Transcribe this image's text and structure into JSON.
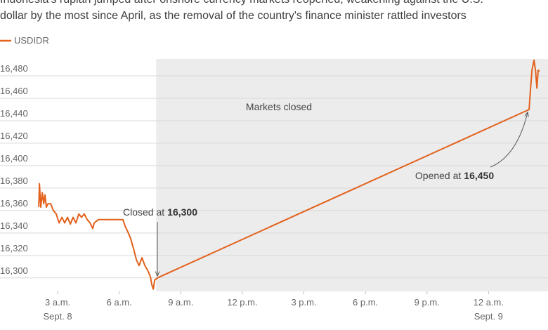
{
  "chart_data": {
    "type": "line",
    "title_lines": [
      "Indonesia's rupiah jumped after onshore currency markets reopened, weakening against the U.S.",
      "dollar by the most since April, as the removal of the country's finance minister rattled investors"
    ],
    "x": [
      2.08,
      2.11,
      2.18,
      2.25,
      2.32,
      2.38,
      2.45,
      2.52,
      2.66,
      2.79,
      2.93,
      3.07,
      3.21,
      3.34,
      3.48,
      3.62,
      3.75,
      3.89,
      4.03,
      4.16,
      4.3,
      4.44,
      4.58,
      4.71,
      4.78,
      4.99,
      6.18,
      6.29,
      6.42,
      6.56,
      6.7,
      6.84,
      6.97,
      7.11,
      7.25,
      7.38,
      7.52,
      7.59,
      7.66,
      7.73,
      7.86,
      25.98,
      26.05,
      26.12,
      26.22,
      26.29,
      26.36,
      26.42,
      26.49
    ],
    "series": [
      {
        "name": "USDIDR",
        "color": "#e2611c",
        "values": [
          16363,
          16384,
          16363,
          16376,
          16366,
          16374,
          16363,
          16366,
          16366,
          16360,
          16357,
          16349,
          16354,
          16349,
          16354,
          16348,
          16354,
          16349,
          16357,
          16354,
          16357,
          16352,
          16349,
          16344,
          16349,
          16352,
          16352,
          16346,
          16341,
          16335,
          16326,
          16316,
          16311,
          16318,
          16311,
          16307,
          16301,
          16294,
          16290,
          16298,
          16300,
          16450,
          16469,
          16485,
          16494,
          16485,
          16469,
          16485,
          16484
        ]
      }
    ],
    "xlim": [
      1.73,
      26.9
    ],
    "xticks": [
      {
        "value": 3,
        "label": "3 a.m."
      },
      {
        "value": 6,
        "label": "6 a.m."
      },
      {
        "value": 9,
        "label": "9 a.m."
      },
      {
        "value": 12,
        "label": "12 p.m."
      },
      {
        "value": 15,
        "label": "3 p.m."
      },
      {
        "value": 18,
        "label": "6 p.m."
      },
      {
        "value": 21,
        "label": "9 p.m."
      },
      {
        "value": 24,
        "label": "12 a.m."
      }
    ],
    "xtick_dates": [
      {
        "value": 3,
        "label": "Sept. 8"
      },
      {
        "value": 24,
        "label": "Sept. 9"
      }
    ],
    "ylim": [
      16288,
      16495
    ],
    "yticks": [
      {
        "value": 16300,
        "label": "16,300"
      },
      {
        "value": 16320,
        "label": "16,320"
      },
      {
        "value": 16340,
        "label": "16,340"
      },
      {
        "value": 16360,
        "label": "16,360"
      },
      {
        "value": 16380,
        "label": "16,380"
      },
      {
        "value": 16400,
        "label": "16,400"
      },
      {
        "value": 16420,
        "label": "16,420"
      },
      {
        "value": 16440,
        "label": "16,440"
      },
      {
        "value": 16460,
        "label": "16,460"
      },
      {
        "value": 16480,
        "label": "16,480"
      }
    ],
    "grid": true,
    "shaded_region": {
      "label": "Markets closed",
      "x": [
        7.8,
        26.9
      ],
      "color": "#ececec"
    },
    "annotations": [
      {
        "text": "Closed at",
        "value_label": "16,300",
        "value": 16300
      },
      {
        "text": "Opened at",
        "value_label": "16,450",
        "value": 16450
      }
    ]
  }
}
